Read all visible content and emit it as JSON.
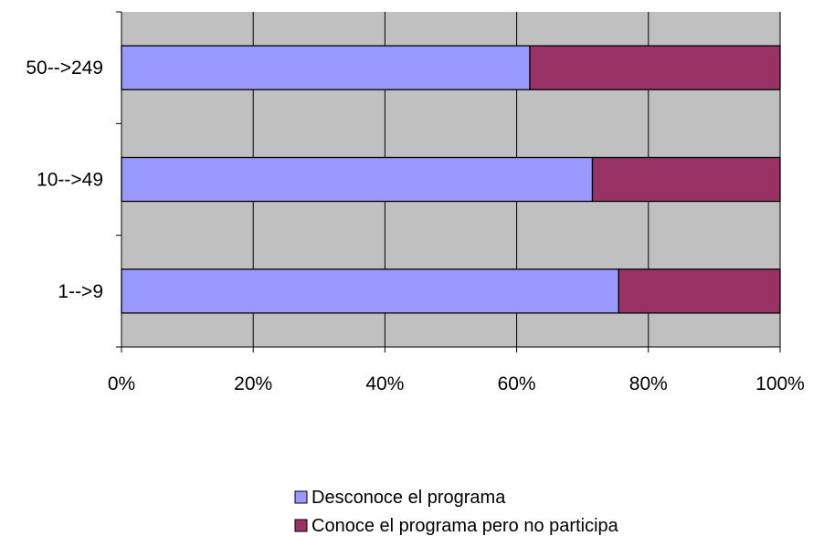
{
  "chart_data": {
    "type": "bar",
    "orientation": "horizontal",
    "stacked": "percent",
    "categories": [
      "50-->249",
      "10-->49",
      "1-->9"
    ],
    "series": [
      {
        "name": "Desconoce el programa",
        "values": [
          62,
          71.5,
          75.5
        ],
        "color": "#9999ff"
      },
      {
        "name": "Conoce el programa pero no participa",
        "values": [
          38,
          28.5,
          24.5
        ],
        "color": "#993366"
      }
    ],
    "x_ticks": [
      "0%",
      "20%",
      "40%",
      "60%",
      "80%",
      "100%"
    ],
    "xlim": [
      0,
      100
    ],
    "grid": true,
    "plot_background": "#c0c0c0",
    "legend_position": "bottom-center"
  }
}
